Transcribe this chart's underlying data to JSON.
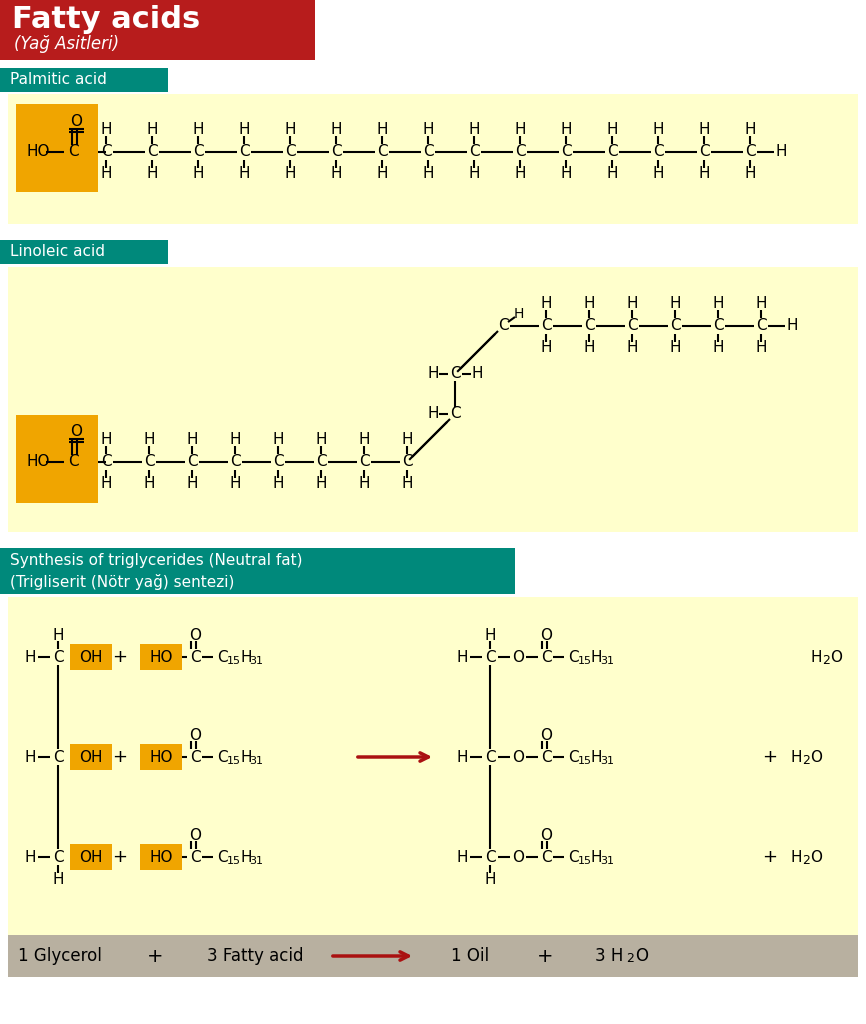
{
  "title": "Fatty acids",
  "title_sub": "(Yağ Asitleri)",
  "title_bg": "#b71c1c",
  "section1_label": "Palmitic acid",
  "section2_label": "Linoleic acid",
  "section3_label_1": "Synthesis of triglycerides (Neutral fat)",
  "section3_label_2": "(Trigliserit (Nötr yağ) sentezi)",
  "section_label_bg": "#00897b",
  "yellow_bg": "#ffffcc",
  "orange_box": "#f0a500",
  "arrow_color": "#aa1111",
  "bottom_bar_bg": "#b8b0a0",
  "fig_bg": "#ffffff"
}
